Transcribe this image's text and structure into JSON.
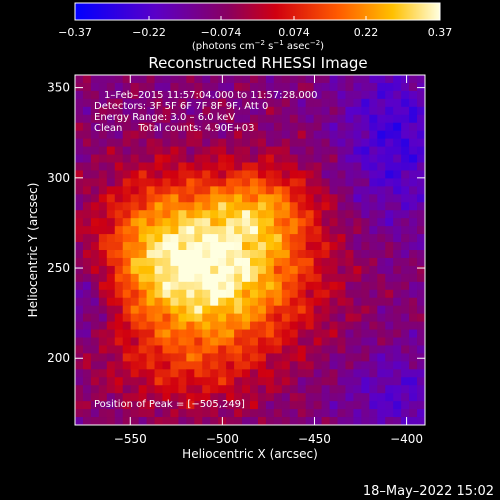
{
  "chart_data": {
    "type": "heatmap",
    "title": "Reconstructed RHESSI Image",
    "xlabel": "Heliocentric X (arcsec)",
    "ylabel": "Heliocentric Y (arcsec)",
    "xlim": [
      -580,
      -390
    ],
    "ylim": [
      163,
      357
    ],
    "xticks": [
      -550,
      -500,
      -450,
      -400
    ],
    "xtick_labels": [
      "−550",
      "−500",
      "−450",
      "−400"
    ],
    "yticks": [
      200,
      250,
      300,
      350
    ],
    "ytick_labels": [
      "200",
      "250",
      "300",
      "350"
    ],
    "peak": [
      -505,
      249
    ],
    "colorbar": {
      "range": [
        -0.37,
        0.37
      ],
      "ticks": [
        -0.37,
        -0.22,
        -0.074,
        0.074,
        0.22,
        0.37
      ],
      "tick_labels": [
        "−0.37",
        "−0.22",
        "−0.074",
        "0.074",
        "0.22",
        "0.37"
      ],
      "unit_main": "(photons cm",
      "unit_sup1": "−2",
      "unit_mid": " s",
      "unit_sup2": "−1",
      "unit_end": " asec",
      "unit_sup3": "−2",
      "unit_close": ")"
    },
    "annotations": {
      "line1": "1–Feb–2015 11:57:04.000 to 11:57:28.000",
      "line2": "Detectors: 3F 5F 6F 7F 8F 9F, Att 0",
      "line3": "Energy Range: 3.0 – 6.0 keV",
      "line4": "Clean     Total counts: 4.90E+03",
      "peak_label": "Position of Peak = [−505,249]"
    },
    "timestamp": "18–May–2022 15:02"
  },
  "colors": {
    "background": "#000000",
    "foreground": "#ffffff",
    "colormap": [
      "#0000ff",
      "#6a00c8",
      "#c8002a",
      "#ff4000",
      "#ffb400",
      "#ffffd0"
    ]
  }
}
